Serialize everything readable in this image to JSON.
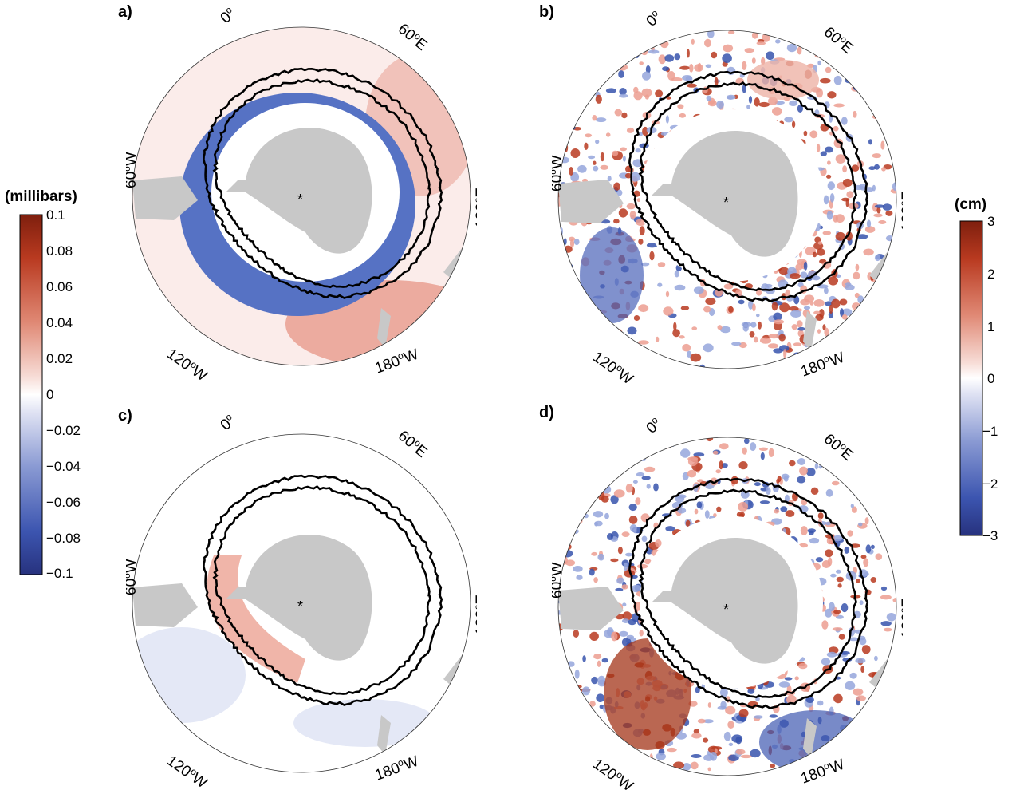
{
  "panels": [
    {
      "id": "a",
      "label": "a)"
    },
    {
      "id": "b",
      "label": "b)"
    },
    {
      "id": "c",
      "label": "c)"
    },
    {
      "id": "d",
      "label": "d)"
    }
  ],
  "longitude_labels": {
    "lon_0": {
      "base": "0",
      "sup": "o",
      "suffix": ""
    },
    "lon_60e": {
      "base": "60",
      "sup": "o",
      "suffix": "E"
    },
    "lon_120e": {
      "base": "120",
      "sup": "o",
      "suffix": "E"
    },
    "lon_180w": {
      "base": "180",
      "sup": "o",
      "suffix": "W"
    },
    "lon_120w": {
      "base": "120",
      "sup": "o",
      "suffix": "W"
    },
    "lon_60w": {
      "base": "60",
      "sup": "o",
      "suffix": "W"
    }
  },
  "pole_marker": "*",
  "colorbars": {
    "left": {
      "title": "(millibars)",
      "ticks": [
        "0.1",
        "0.08",
        "0.06",
        "0.04",
        "0.02",
        "0",
        "−0.02",
        "−0.04",
        "−0.06",
        "−0.08",
        "−0.1"
      ]
    },
    "right": {
      "title": "(cm)",
      "ticks": [
        "3",
        "2",
        "1",
        "0",
        "−1",
        "−2",
        "−3"
      ]
    }
  },
  "colors": {
    "positive": "#b2301b",
    "negative": "#2e3f9e",
    "land": "#c8c8c8",
    "front": "#000000"
  }
}
